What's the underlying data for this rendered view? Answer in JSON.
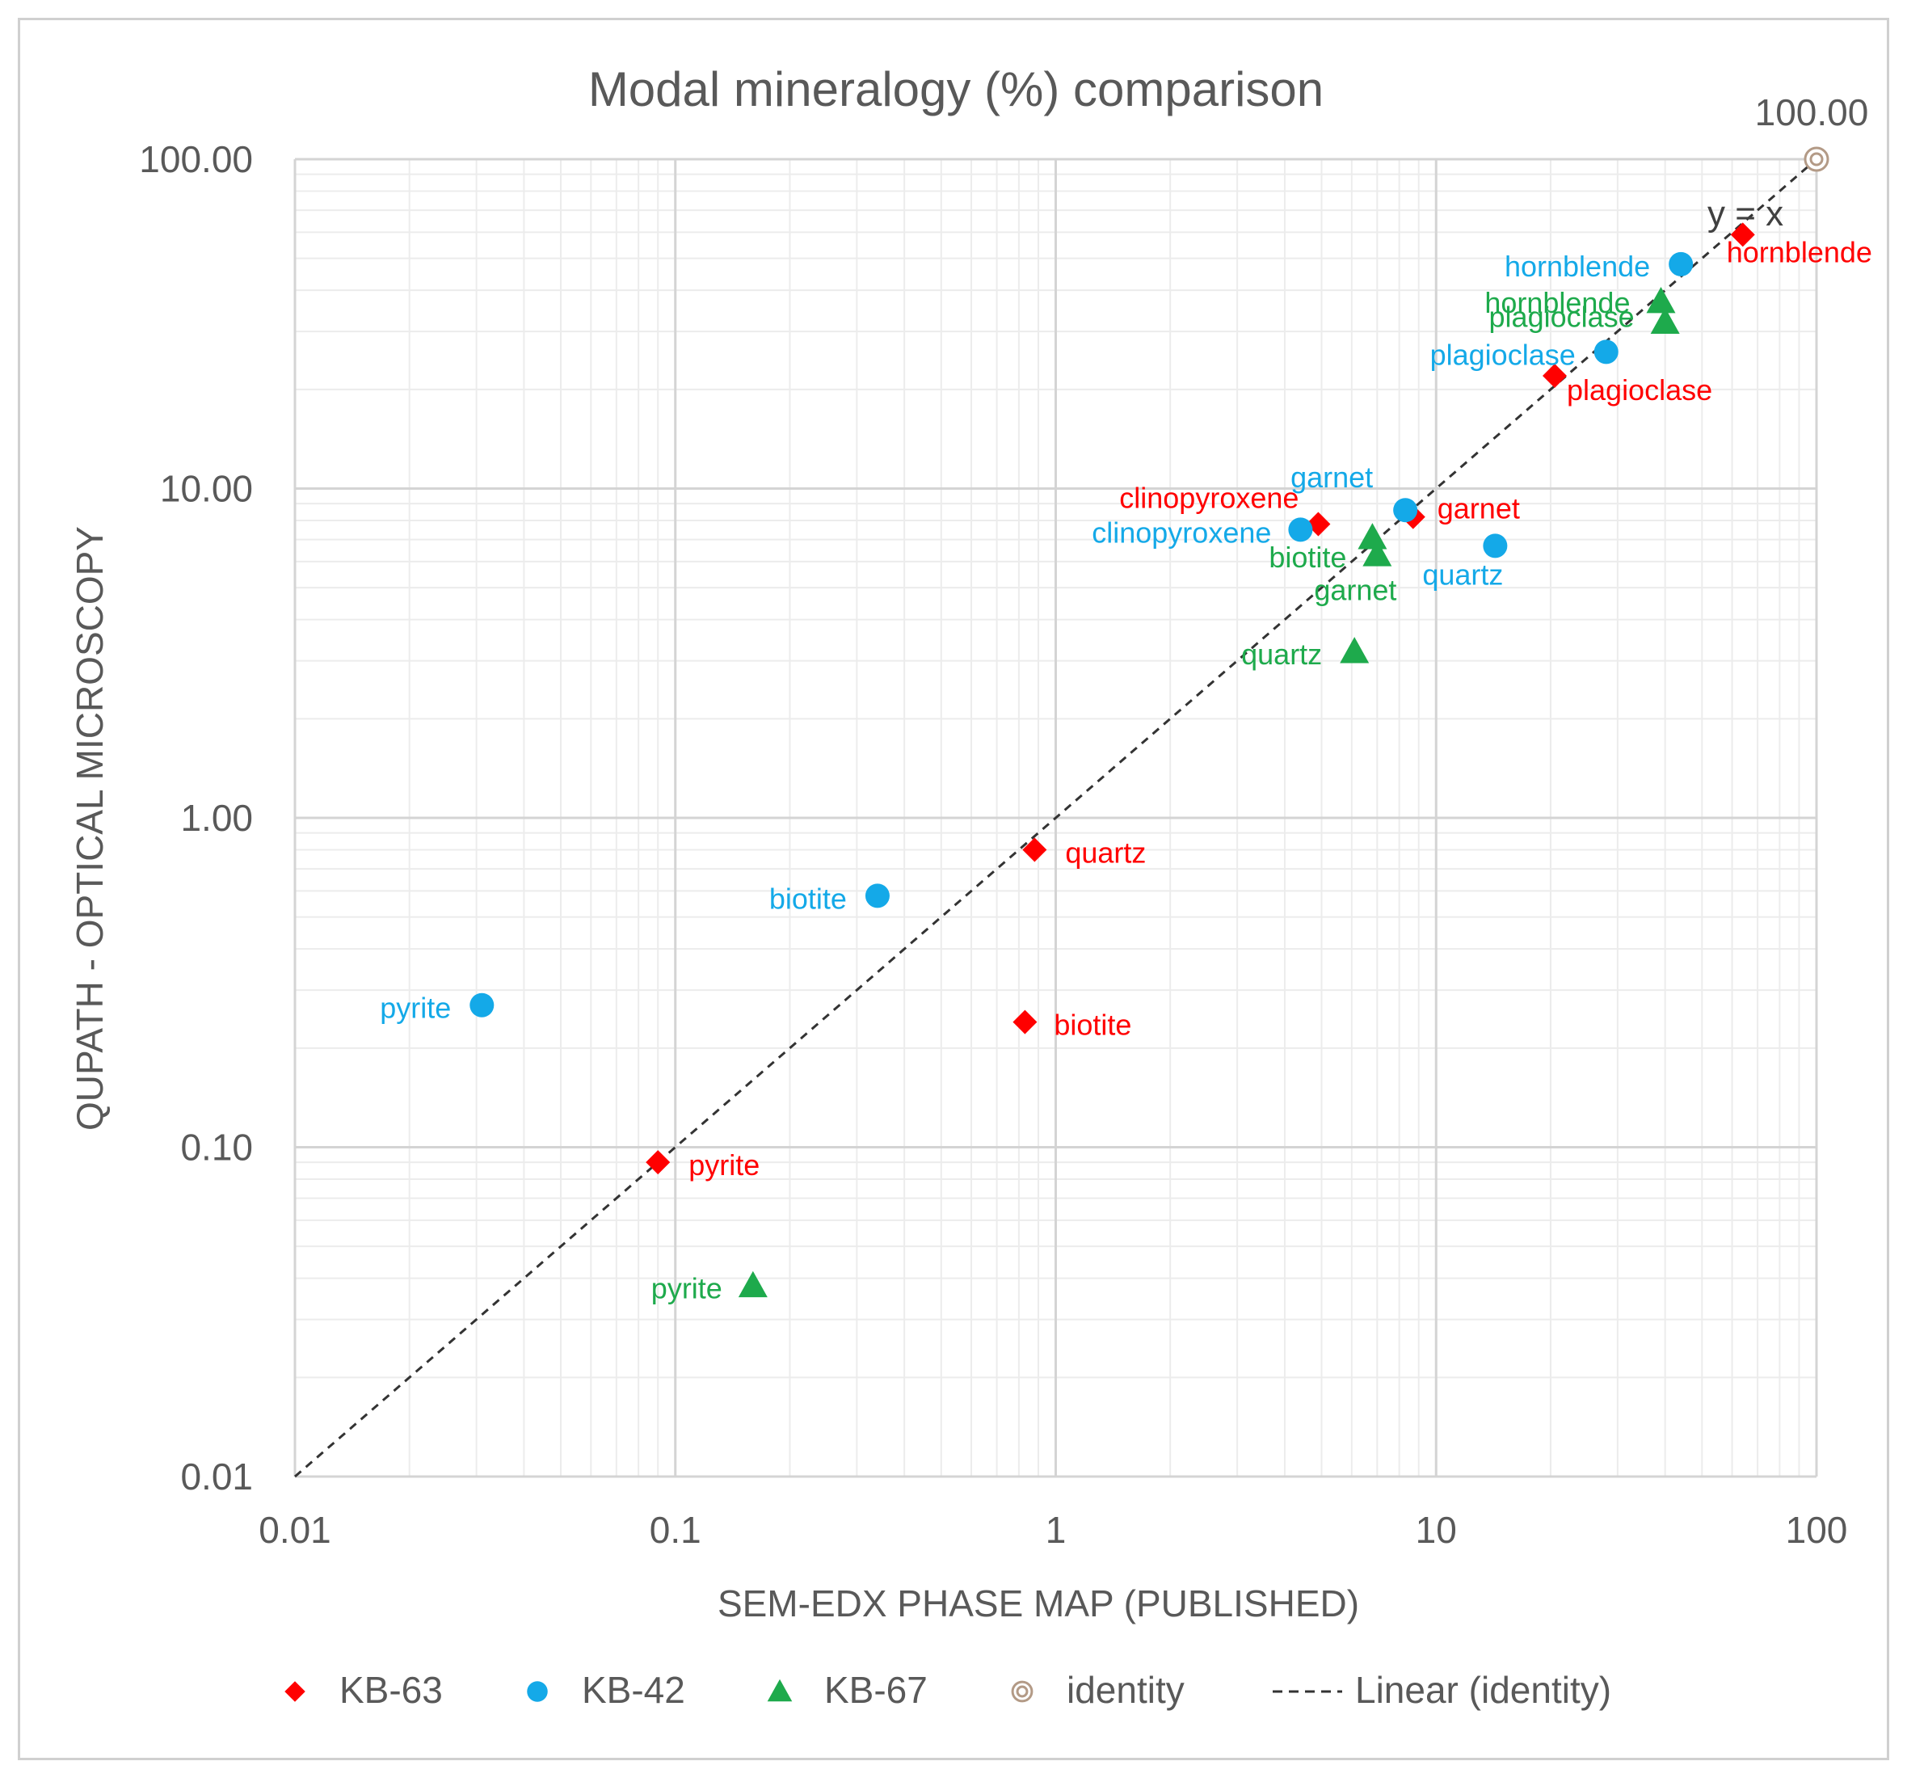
{
  "chart_data": {
    "type": "scatter",
    "title": "Modal mineralogy (%) comparison",
    "xlabel": "SEM-EDX PHASE MAP (PUBLISHED)",
    "ylabel": "QUPATH - OPTICAL MICROSCOPY",
    "x_scale": "log",
    "y_scale": "log",
    "xlim": [
      0.01,
      100
    ],
    "ylim": [
      0.01,
      100
    ],
    "x_ticks": [
      "0.01",
      "0.1",
      "1",
      "10",
      "100"
    ],
    "y_ticks": [
      "0.01",
      "0.10",
      "1.00",
      "10.00",
      "100.00"
    ],
    "grid": "major and minor",
    "legend_position": "bottom",
    "series": [
      {
        "name": "KB-63",
        "marker": "diamond",
        "color": "#ff0000",
        "points": [
          {
            "label": "hornblende",
            "x": 64,
            "y": 59
          },
          {
            "label": "plagioclase",
            "x": 20.5,
            "y": 22
          },
          {
            "label": "garnet",
            "x": 8.7,
            "y": 8.2
          },
          {
            "label": "clinopyroxene",
            "x": 4.9,
            "y": 7.8
          },
          {
            "label": "quartz",
            "x": 0.88,
            "y": 0.8
          },
          {
            "label": "biotite",
            "x": 0.83,
            "y": 0.24
          },
          {
            "label": "pyrite",
            "x": 0.09,
            "y": 0.09
          }
        ]
      },
      {
        "name": "KB-42",
        "marker": "circle",
        "color": "#14a9e8",
        "points": [
          {
            "label": "hornblende",
            "x": 44,
            "y": 48
          },
          {
            "label": "plagioclase",
            "x": 28,
            "y": 26
          },
          {
            "label": "garnet",
            "x": 8.3,
            "y": 8.6
          },
          {
            "label": "clinopyroxene",
            "x": 4.4,
            "y": 7.5
          },
          {
            "label": "quartz",
            "x": 14.3,
            "y": 6.7
          },
          {
            "label": "biotite",
            "x": 0.34,
            "y": 0.58
          },
          {
            "label": "pyrite",
            "x": 0.031,
            "y": 0.27
          }
        ]
      },
      {
        "name": "KB-67",
        "marker": "triangle",
        "color": "#1eaa4c",
        "points": [
          {
            "label": "hornblende",
            "x": 39,
            "y": 37
          },
          {
            "label": "plagioclase",
            "x": 40,
            "y": 32
          },
          {
            "label": "biotite",
            "x": 6.8,
            "y": 7.1
          },
          {
            "label": "garnet",
            "x": 7.0,
            "y": 6.3
          },
          {
            "label": "quartz",
            "x": 6.1,
            "y": 3.2
          },
          {
            "label": "pyrite",
            "x": 0.16,
            "y": 0.038
          }
        ]
      },
      {
        "name": "identity",
        "marker": "double-circle",
        "color": "#b39a86",
        "points": [
          {
            "label": "100.00",
            "x": 100,
            "y": 100
          }
        ]
      }
    ],
    "trendline": {
      "name": "Linear (identity)",
      "style": "dashed",
      "color": "#333333",
      "from": [
        0.01,
        0.01
      ],
      "to": [
        100,
        100
      ],
      "annotation": "y = x"
    }
  }
}
